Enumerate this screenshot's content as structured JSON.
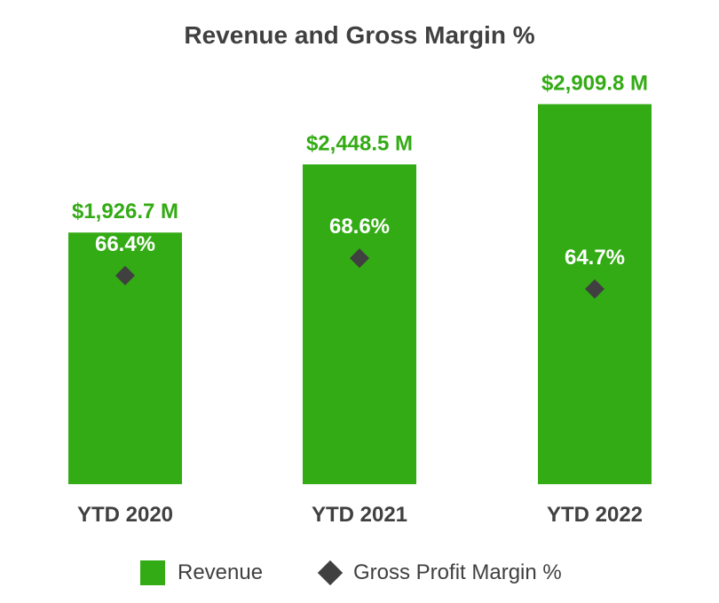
{
  "chart_data": {
    "type": "bar",
    "title": "Revenue and Gross Margin %",
    "categories": [
      "YTD 2020",
      "YTD 2021",
      "YTD 2022"
    ],
    "series": [
      {
        "name": "Revenue",
        "values": [
          1926.7,
          2448.5,
          2909.8
        ],
        "labels": [
          "$1,926.7 M",
          "$2,448.5 M",
          "$2,909.8 M"
        ],
        "color": "#33ab14"
      },
      {
        "name": "Gross Profit Margin %",
        "values": [
          66.4,
          68.6,
          64.7
        ],
        "labels": [
          "66.4%",
          "68.6%",
          "64.7%"
        ],
        "color": "#404040",
        "marker": "diamond"
      }
    ],
    "ylim": [
      0,
      3300
    ],
    "grid": false,
    "legend": "bottom-center"
  },
  "legend": {
    "revenue_label": "Revenue",
    "margin_label": "Gross Profit Margin %"
  }
}
